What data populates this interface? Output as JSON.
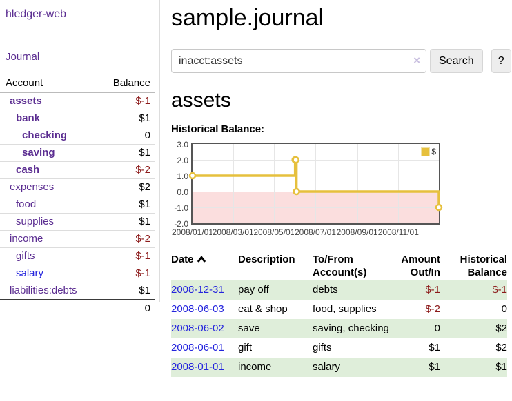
{
  "app": {
    "brand": "hledger-web"
  },
  "colors": {
    "link_purple": "#5B2D91",
    "link_blue": "#2424DD",
    "negative_red": "#8C1A1A",
    "stripe_green": "#DFEEDA",
    "chart_line_gold": "#E6C03D",
    "chart_negative_fill": "#FBDEDE",
    "chart_zero_line": "#8B0000",
    "chart_border_gray": "#555555"
  },
  "sidebar": {
    "nav_journal": "Journal",
    "accounts": {
      "header_account": "Account",
      "header_balance": "Balance",
      "rows": [
        {
          "name": "assets",
          "depth": 1,
          "balance": "$-1",
          "negative": true,
          "bold": true
        },
        {
          "name": "bank",
          "depth": 2,
          "balance": "$1",
          "negative": false,
          "bold": true
        },
        {
          "name": "checking",
          "depth": 3,
          "balance": "0",
          "negative": false,
          "bold": true
        },
        {
          "name": "saving",
          "depth": 3,
          "balance": "$1",
          "negative": false,
          "bold": true
        },
        {
          "name": "cash",
          "depth": 2,
          "balance": "$-2",
          "negative": true,
          "bold": true
        },
        {
          "name": "expenses",
          "depth": 1,
          "balance": "$2",
          "negative": false,
          "bold": false
        },
        {
          "name": "food",
          "depth": 2,
          "balance": "$1",
          "negative": false,
          "bold": false
        },
        {
          "name": "supplies",
          "depth": 2,
          "balance": "$1",
          "negative": false,
          "bold": false
        },
        {
          "name": "income",
          "depth": 1,
          "balance": "$-2",
          "negative": true,
          "bold": false
        },
        {
          "name": "gifts",
          "depth": 2,
          "balance": "$-1",
          "negative": true,
          "bold": false
        },
        {
          "name": "salary",
          "depth": 2,
          "balance": "$-1",
          "negative": true,
          "bold": false,
          "unvisited": true
        },
        {
          "name": "liabilities:debts",
          "depth": 1,
          "balance": "$1",
          "negative": false,
          "bold": false
        }
      ],
      "total": "0"
    }
  },
  "main": {
    "title": "sample.journal",
    "search": {
      "value": "inacct:assets",
      "clear_icon": "×",
      "button_label": "Search",
      "help_label": "?"
    },
    "account_heading": "assets",
    "section_label": "Historical Balance:"
  },
  "chart_data": {
    "type": "line",
    "step": true,
    "title": "Historical Balance of assets",
    "series": [
      {
        "name": "$",
        "points": [
          [
            "2008-01-01",
            1
          ],
          [
            "2008-06-01",
            2
          ],
          [
            "2008-06-02",
            2
          ],
          [
            "2008-06-03",
            0
          ],
          [
            "2008-12-31",
            -1
          ]
        ]
      }
    ],
    "ylim": [
      -2,
      3
    ],
    "yticks": [
      "3.0",
      "2.0",
      "1.0",
      "0.0",
      "-1.0",
      "-2.0"
    ],
    "ytick_values": [
      3,
      2,
      1,
      0,
      -1,
      -2
    ],
    "xticks": [
      "2008/01/01",
      "2008/03/01",
      "2008/05/01",
      "2008/07/01",
      "2008/09/01",
      "2008/11/01"
    ],
    "xtick_dates": [
      "2008-01-01",
      "2008-03-01",
      "2008-05-01",
      "2008-07-01",
      "2008-09-01",
      "2008-11-01"
    ],
    "xrange": [
      "2008-01-01",
      "2008-12-31"
    ],
    "legend": {
      "label": "$",
      "position": "top-right"
    },
    "grid": true
  },
  "register": {
    "headers": {
      "date": "Date",
      "description": "Description",
      "account_line1": "To/From",
      "account_line2": "Account(s)",
      "amount_line1": "Amount",
      "amount_line2": "Out/In",
      "balance_line1": "Historical",
      "balance_line2": "Balance"
    },
    "rows": [
      {
        "date": "2008-12-31",
        "description": "pay off",
        "accounts": "debts",
        "amount": "$-1",
        "amount_negative": true,
        "balance": "$-1",
        "balance_negative": true
      },
      {
        "date": "2008-06-03",
        "description": "eat & shop",
        "accounts": "food, supplies",
        "amount": "$-2",
        "amount_negative": true,
        "balance": "0",
        "balance_negative": false
      },
      {
        "date": "2008-06-02",
        "description": "save",
        "accounts": "saving, checking",
        "amount": "0",
        "amount_negative": false,
        "balance": "$2",
        "balance_negative": false
      },
      {
        "date": "2008-06-01",
        "description": "gift",
        "accounts": "gifts",
        "amount": "$1",
        "amount_negative": false,
        "balance": "$2",
        "balance_negative": false
      },
      {
        "date": "2008-01-01",
        "description": "income",
        "accounts": "salary",
        "amount": "$1",
        "amount_negative": false,
        "balance": "$1",
        "balance_negative": false
      }
    ]
  }
}
